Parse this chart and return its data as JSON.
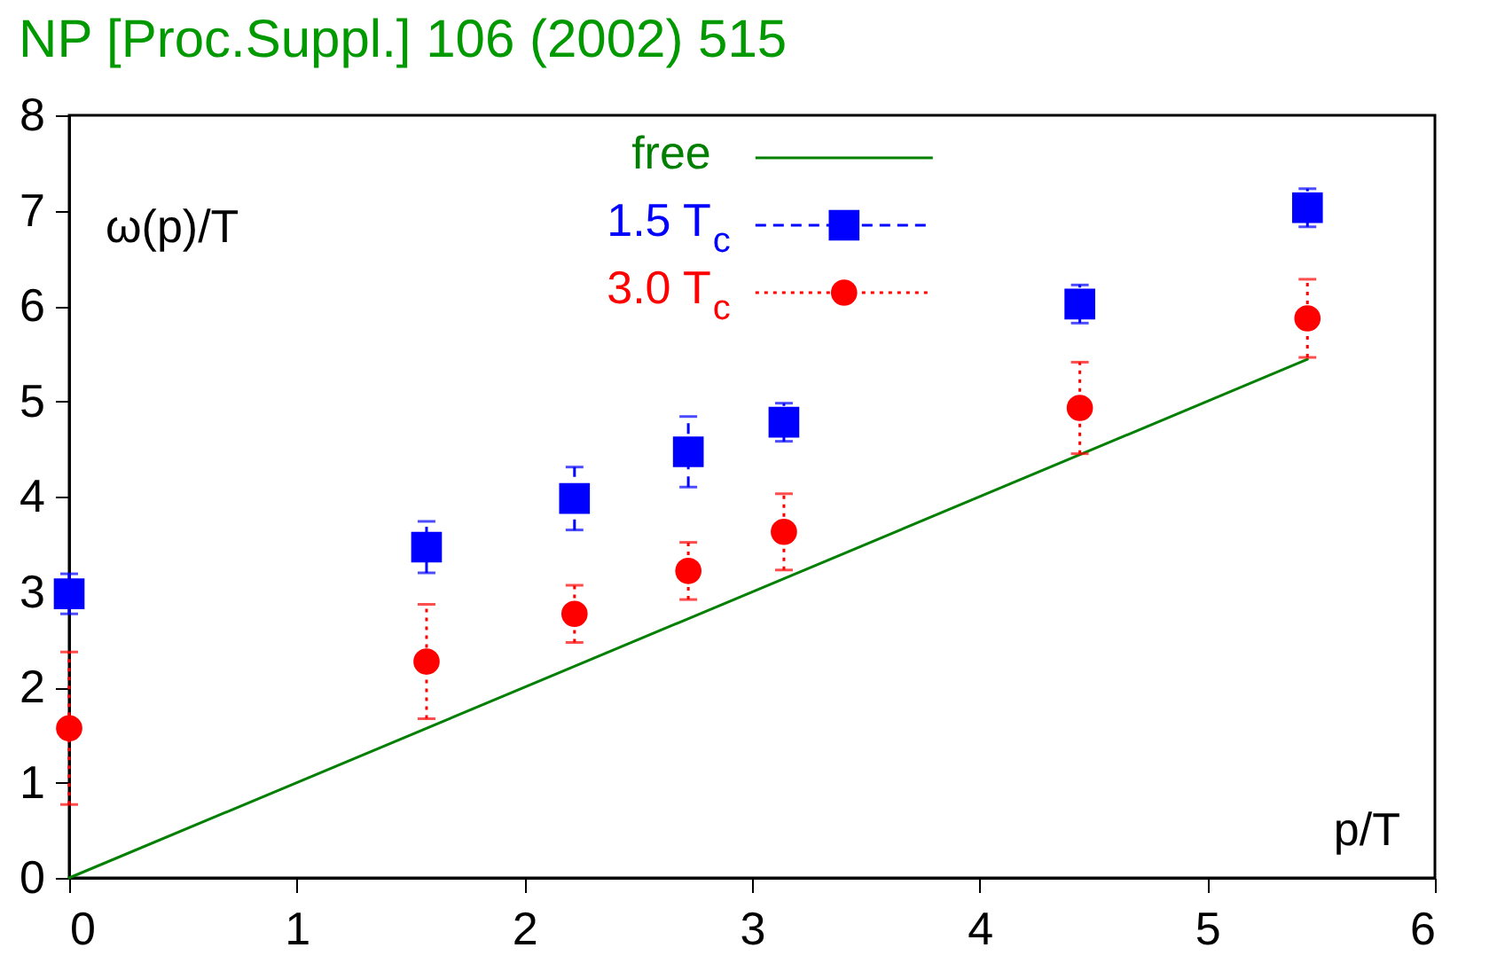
{
  "chart_data": {
    "type": "scatter",
    "title": "NP [Proc.Suppl.] 106 (2002) 515",
    "xlabel": "p/T",
    "ylabel": "ω(p)/T",
    "x": [
      0,
      1.57,
      2.22,
      2.72,
      3.14,
      4.44,
      5.44
    ],
    "series": [
      {
        "name": "free",
        "type": "line",
        "color": "#007f00",
        "x": [
          0,
          5.44
        ],
        "values": [
          0,
          5.44
        ],
        "line_style": "solid"
      },
      {
        "name": "1.5 T$_{c}$",
        "color": "#0000ff",
        "values": [
          2.98,
          3.47,
          3.98,
          4.47,
          4.78,
          6.02,
          7.03
        ],
        "errors": [
          0.21,
          0.27,
          0.33,
          0.37,
          0.2,
          0.2,
          0.2
        ],
        "marker": "square",
        "line_style": "dashed"
      },
      {
        "name": "3.0 T$_{c}$",
        "color": "#ff0000",
        "values": [
          1.57,
          2.27,
          2.77,
          3.22,
          3.63,
          4.93,
          5.87
        ],
        "errors": [
          0.8,
          0.6,
          0.3,
          0.3,
          0.4,
          0.48,
          0.41
        ],
        "marker": "circle",
        "line_style": "dotted"
      }
    ],
    "xlim": [
      0,
      6
    ],
    "ylim": [
      0,
      8
    ],
    "xticks": [
      0,
      1,
      2,
      3,
      4,
      5,
      6
    ],
    "yticks": [
      0,
      1,
      2,
      3,
      4,
      5,
      6,
      7,
      8
    ],
    "grid": false,
    "legend": "top"
  }
}
